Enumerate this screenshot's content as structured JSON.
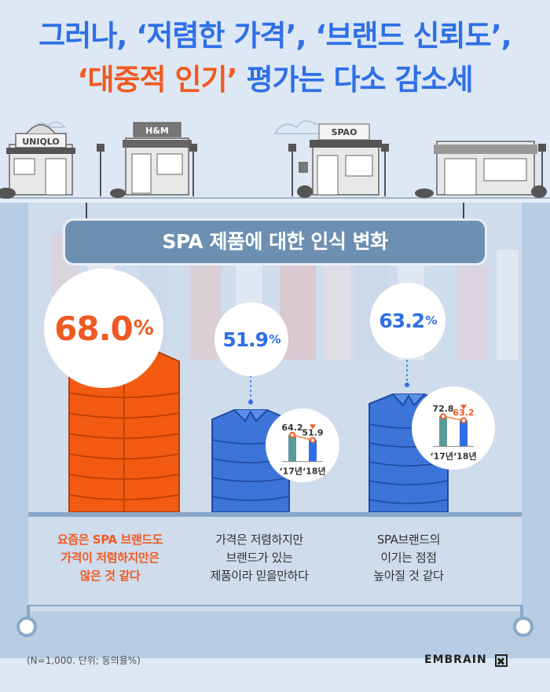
{
  "headline": {
    "line1": "그러나, ‘저렴한 가격’, ‘브랜드 신뢰도’,",
    "line2_a": "‘대중적 인기’",
    "line2_b": " 평가는 다소 감소세"
  },
  "stores": [
    {
      "sign": "UNIQLO"
    },
    {
      "sign": "H&M"
    },
    {
      "sign": "SPAO"
    }
  ],
  "chart_title": "SPA 제품에 대한 인식 변화",
  "items": [
    {
      "value": "68.0",
      "unit": "%",
      "caption": "요즘은 SPA 브랜드도\n가격이 저렴하지만은\n않은 것 같다",
      "shirt_color": "#f35a12"
    },
    {
      "value": "51.9",
      "unit": "%",
      "caption": "가격은 저렴하지만\n브랜드가 있는\n제품이라 믿을만하다",
      "shirt_color": "#3c74d8",
      "mini_chart": {
        "prev": "64.2",
        "curr": "51.9",
        "labels": [
          "‘17년",
          "‘18년"
        ]
      }
    },
    {
      "value": "63.2",
      "unit": "%",
      "caption": "SPA브랜드의\n이기는 점점\n높아질 것 같다",
      "shirt_color": "#3c74d8",
      "mini_chart": {
        "prev": "72.8",
        "curr": "63.2",
        "labels": [
          "‘17년",
          "‘18년"
        ]
      }
    }
  ],
  "chart_data": {
    "type": "bar",
    "categories": [
      "‘17년",
      "‘18년"
    ],
    "series": [
      {
        "values": [
          64.2,
          51.9
        ]
      },
      {
        "values": [
          72.8,
          63.2
        ]
      }
    ]
  },
  "footnote": "(N=1,000. 단위; 동의율%)",
  "logo": "EMBRAIN",
  "colors": {
    "orange": "#ef5a22",
    "blue": "#2f6fe6",
    "teal": "#5a9a9a",
    "board": "#b7cde4"
  }
}
